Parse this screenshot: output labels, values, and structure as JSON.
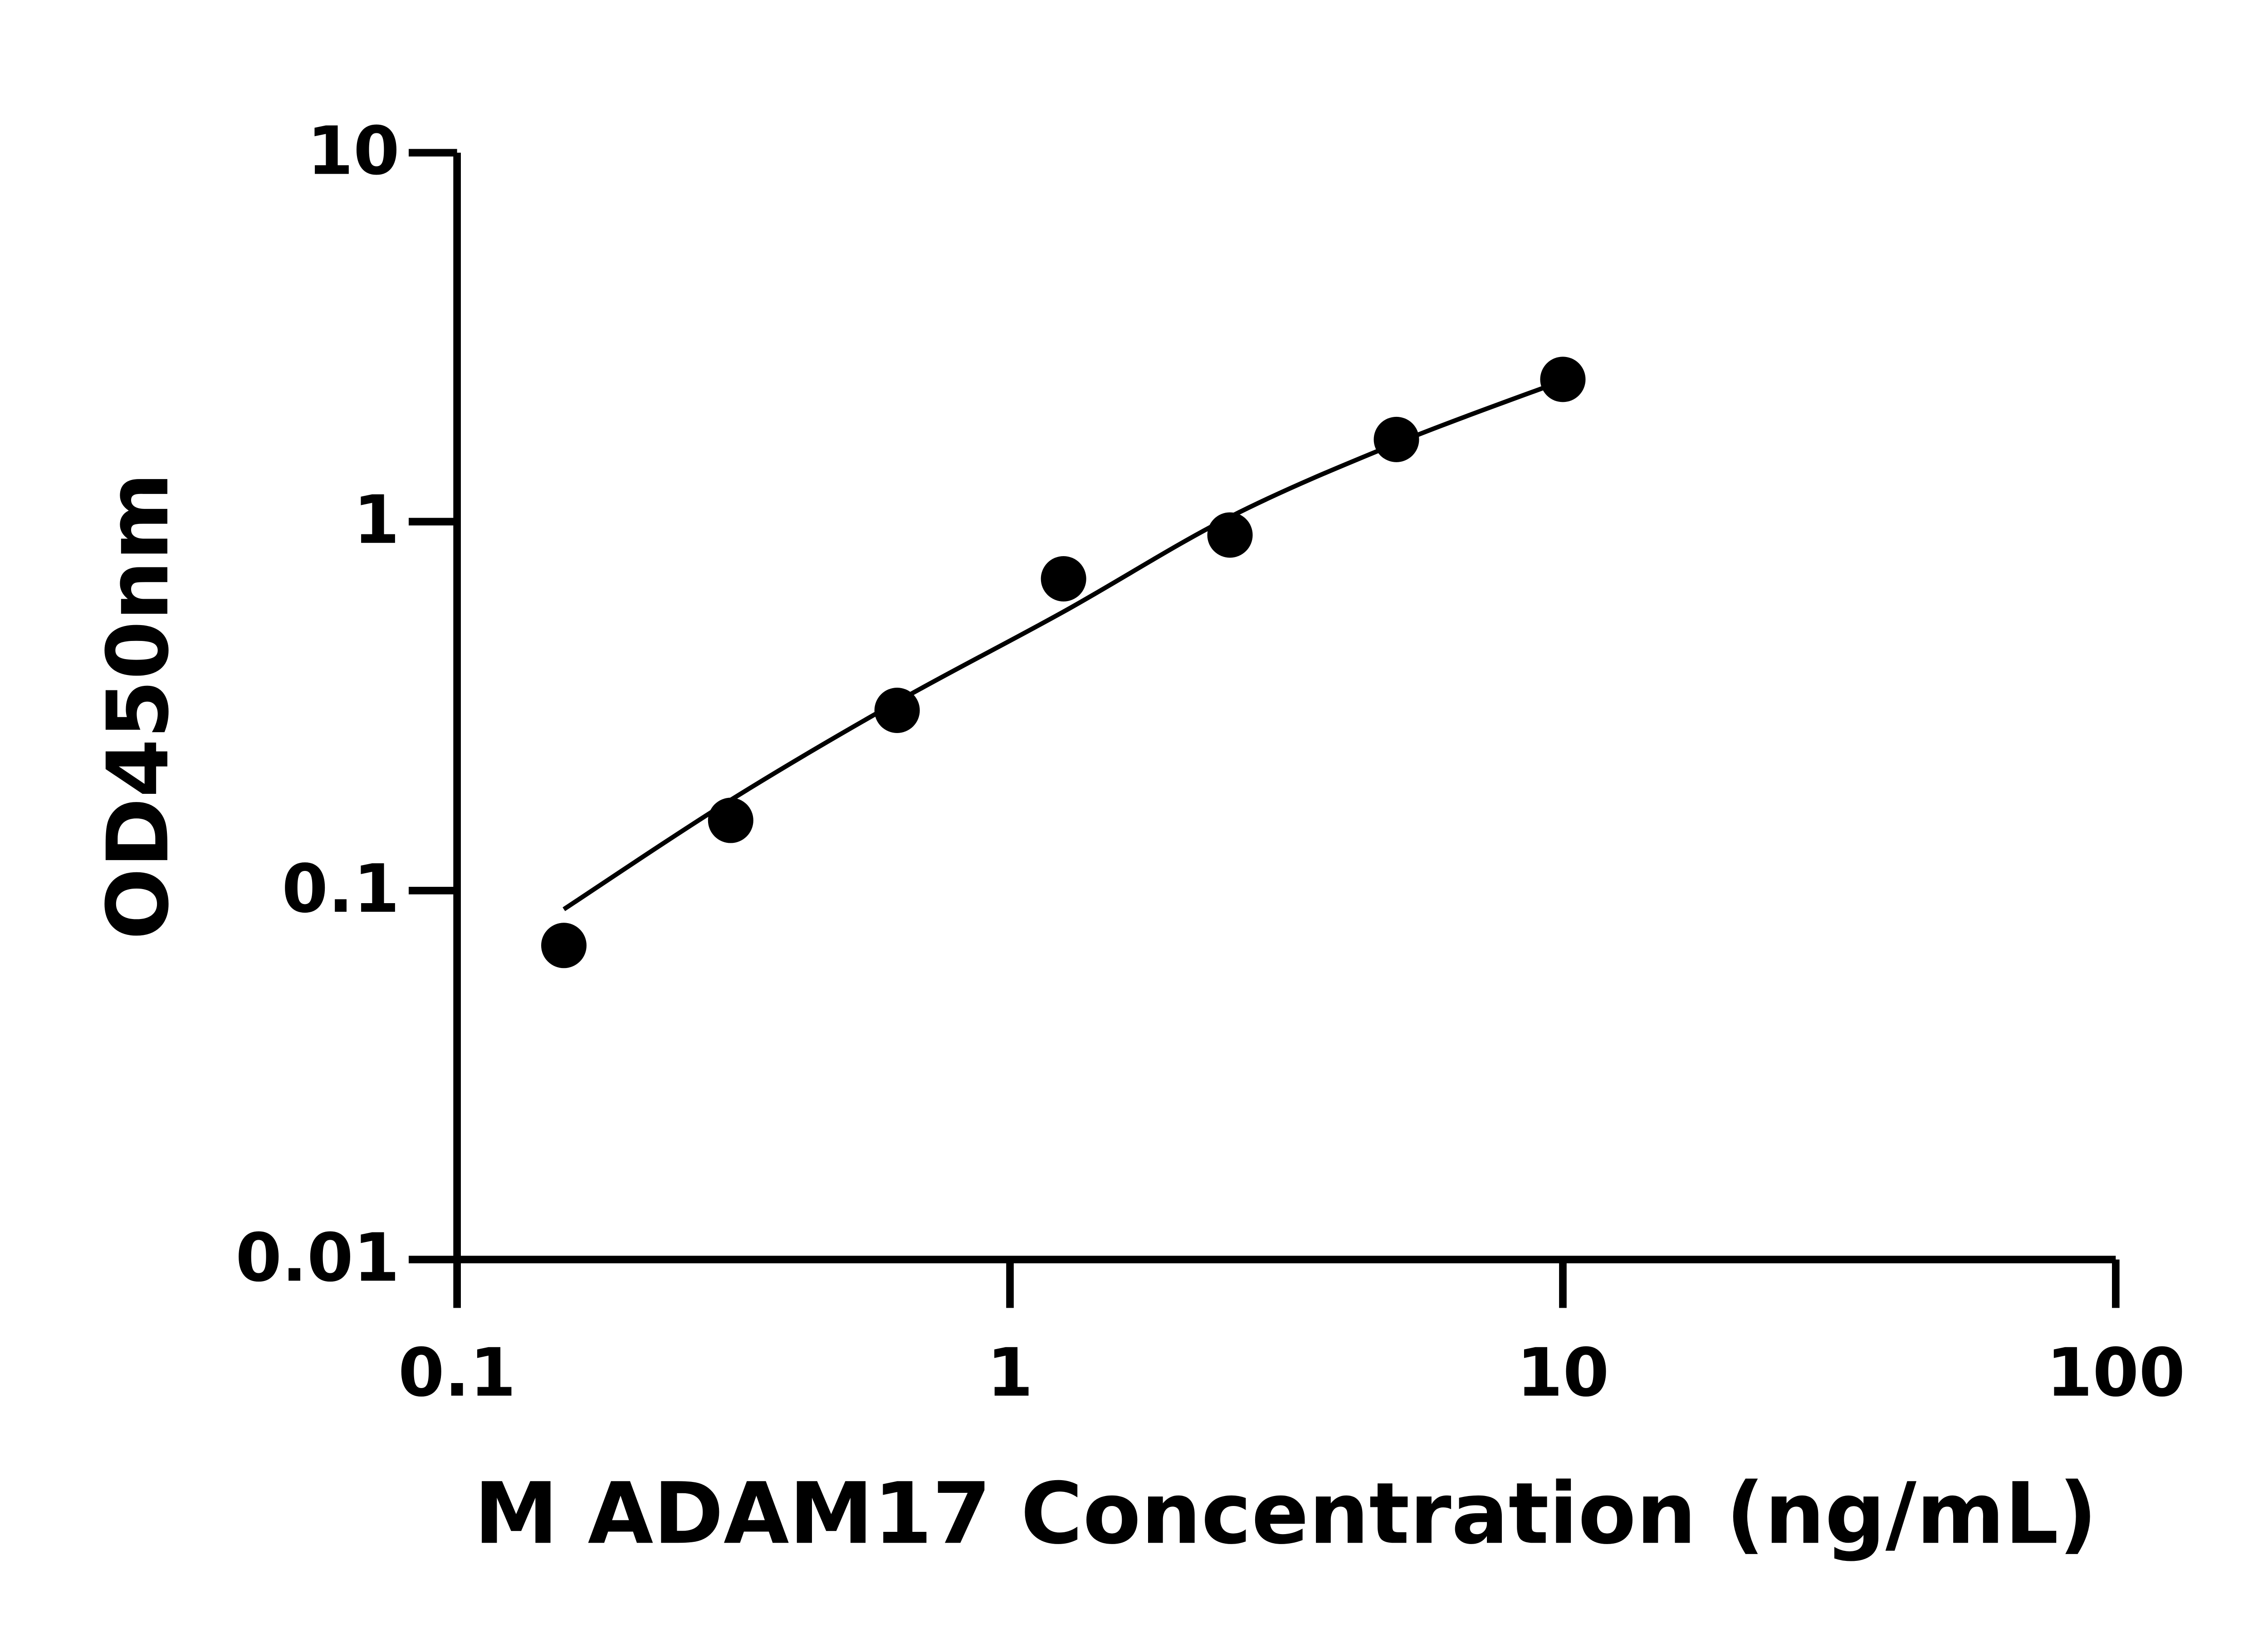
{
  "chart_data": {
    "type": "scatter",
    "x_label": "M ADAM17 Concentration (ng/mL)",
    "y_label": "OD450nm",
    "x": [
      0.156,
      0.3125,
      0.625,
      1.25,
      2.5,
      5,
      10
    ],
    "series": [
      {
        "color": "#000000",
        "values": [
          0.071,
          0.155,
          0.308,
          0.7,
          0.92,
          1.67,
          2.43
        ]
      },
      {
        "color": "#000000",
        "line": true,
        "values": [
          0.089,
          0.176,
          0.325,
          0.57,
          1.03,
          1.63,
          2.41
        ]
      }
    ],
    "xlim": [
      0.1,
      100
    ],
    "ylim": [
      0.01,
      10
    ],
    "xticks": [
      0.1,
      1,
      10,
      100
    ],
    "yticks": [
      0.01,
      0.1,
      1,
      10
    ],
    "xlog": true,
    "ylog": true
  }
}
